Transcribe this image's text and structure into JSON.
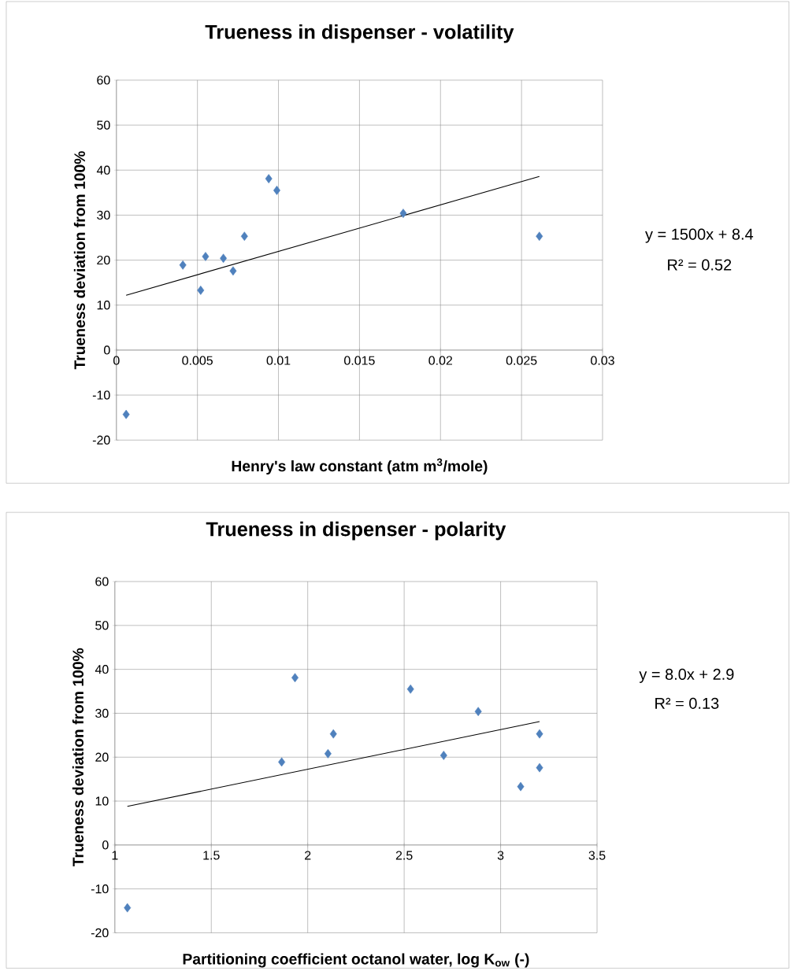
{
  "chart_data": [
    {
      "type": "scatter",
      "title": "Trueness in dispenser - volatility",
      "xlabel": "Henry's law constant (atm m$^{3}$/mole)",
      "ylabel": "Trueness deviation from 100%",
      "annotations": [
        "y = 1500x + 8.4",
        "R² = 0.52"
      ],
      "xlim": [
        0,
        0.03
      ],
      "ylim": [
        -20,
        60
      ],
      "xticks": [
        0,
        0.005,
        0.01,
        0.015,
        0.02,
        0.025,
        0.03
      ],
      "yticks": [
        -20,
        -10,
        0,
        10,
        20,
        30,
        40,
        50,
        60
      ],
      "grid": true,
      "series": [
        {
          "type": "scatter",
          "marker": "diamond",
          "color": "#4f81bd",
          "x": [
            0.0006,
            0.0041,
            0.0052,
            0.0055,
            0.0066,
            0.0072,
            0.0079,
            0.0094,
            0.0099,
            0.0177,
            0.0261
          ],
          "values": [
            -14.3,
            18.9,
            13.3,
            20.8,
            20.4,
            17.6,
            25.3,
            38.1,
            35.5,
            30.4,
            25.3
          ]
        },
        {
          "type": "line",
          "marker": "none",
          "color": "#000000",
          "x": [
            0.0006,
            0.0261
          ],
          "values": [
            12.2,
            38.6
          ]
        }
      ]
    },
    {
      "type": "scatter",
      "title": "Trueness in dispenser - polarity",
      "xlabel": "Partitioning coefficient octanol water, log K$_{ow}$ (-)",
      "ylabel": "Trueness deviation from 100%",
      "annotations": [
        "y = 8.0x + 2.9",
        "R² = 0.13"
      ],
      "xlim": [
        1,
        3.5
      ],
      "ylim": [
        -20,
        60
      ],
      "xticks": [
        1,
        1.5,
        2,
        2.5,
        3,
        3.5
      ],
      "yticks": [
        -20,
        -10,
        0,
        10,
        20,
        30,
        40,
        50,
        60
      ],
      "grid": true,
      "series": [
        {
          "type": "scatter",
          "marker": "diamond",
          "color": "#4f81bd",
          "x": [
            1.065,
            1.865,
            1.934,
            2.105,
            2.133,
            2.533,
            2.705,
            2.884,
            3.104,
            3.202,
            3.202
          ],
          "values": [
            -14.3,
            18.9,
            38.1,
            20.8,
            25.3,
            35.5,
            20.4,
            30.4,
            13.3,
            17.6,
            25.3
          ]
        },
        {
          "type": "line",
          "marker": "none",
          "color": "#000000",
          "x": [
            1.065,
            3.202
          ],
          "values": [
            8.8,
            28.1
          ]
        }
      ]
    }
  ]
}
